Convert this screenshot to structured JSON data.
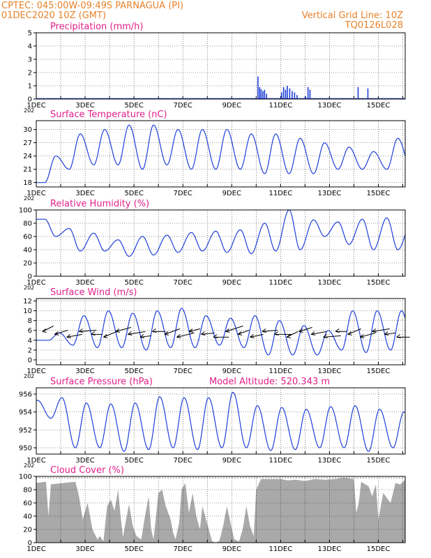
{
  "header": {
    "line1": "CPTEC:   045:00W-09:49S   PARNAGUA (PI)",
    "line2": "01DEC2020 10Z (GMT)",
    "right1": "Vertical Grid Line: 10Z",
    "right2": "TQ0126L028"
  },
  "colors": {
    "header": "#e8822a",
    "title": "#e0208a",
    "series": "#1f3fd8",
    "cloud": "#a9a9a9",
    "grid": "#000000"
  },
  "chart_data": [
    {
      "type": "bar",
      "title": "Precipitation (mm/h)",
      "x_ticks": [
        "1DEC",
        "3DEC",
        "5DEC",
        "7DEC",
        "9DEC",
        "11DEC",
        "13DEC",
        "15DEC"
      ],
      "under_label": "202",
      "xlim_days": [
        1,
        16.1
      ],
      "ylim": [
        0,
        5
      ],
      "y_ticks": [
        "0",
        "1",
        "2",
        "3",
        "4",
        "5"
      ],
      "values_day_mm": [
        [
          10.05,
          1.7
        ],
        [
          10.12,
          0.9
        ],
        [
          10.18,
          0.75
        ],
        [
          10.25,
          0.6
        ],
        [
          10.32,
          0.7
        ],
        [
          10.4,
          0.4
        ],
        [
          11.02,
          0.5
        ],
        [
          11.1,
          0.9
        ],
        [
          11.18,
          0.7
        ],
        [
          11.25,
          1.0
        ],
        [
          11.35,
          0.8
        ],
        [
          11.45,
          0.6
        ],
        [
          11.55,
          0.5
        ],
        [
          11.65,
          0.3
        ],
        [
          12.0,
          0.2
        ],
        [
          12.1,
          0.9
        ],
        [
          12.18,
          0.7
        ],
        [
          14.15,
          0.9
        ],
        [
          14.55,
          0.8
        ]
      ]
    },
    {
      "type": "line",
      "title": "Surface Temperature (nC)",
      "x_ticks": [
        "1DEC",
        "3DEC",
        "5DEC",
        "7DEC",
        "9DEC",
        "11DEC",
        "13DEC",
        "15DEC"
      ],
      "under_label": "202",
      "xlim_days": [
        1,
        16.1
      ],
      "ylim": [
        17,
        32
      ],
      "y_ticks": [
        "18",
        "21",
        "24",
        "27",
        "30"
      ],
      "daily_min": [
        18,
        21,
        22,
        22,
        21,
        22,
        21,
        21,
        21,
        20,
        20,
        20,
        21,
        21,
        21,
        21
      ],
      "daily_max": [
        24,
        29,
        30,
        31,
        31,
        30,
        30,
        30,
        29,
        29,
        28,
        27,
        26,
        25,
        28,
        29.5
      ]
    },
    {
      "type": "line",
      "title": "Relative Humidity (%)",
      "x_ticks": [
        "1DEC",
        "3DEC",
        "5DEC",
        "7DEC",
        "9DEC",
        "11DEC",
        "13DEC",
        "15DEC"
      ],
      "under_label": "202",
      "xlim_days": [
        1,
        16.1
      ],
      "ylim": [
        0,
        100
      ],
      "y_ticks": [
        "0",
        "20",
        "40",
        "60",
        "80",
        "100"
      ],
      "daily_min": [
        60,
        38,
        38,
        30,
        32,
        36,
        38,
        36,
        34,
        38,
        40,
        60,
        48,
        40,
        40,
        42
      ],
      "daily_max": [
        86,
        72,
        65,
        55,
        60,
        62,
        66,
        68,
        70,
        80,
        100,
        85,
        82,
        86,
        88,
        80
      ]
    },
    {
      "type": "line",
      "title": "Surface Wind (m/s)",
      "x_ticks": [
        "1DEC",
        "3DEC",
        "5DEC",
        "7DEC",
        "9DEC",
        "11DEC",
        "13DEC",
        "15DEC"
      ],
      "under_label": "202",
      "xlim_days": [
        1,
        16.1
      ],
      "ylim": [
        -1,
        12.5
      ],
      "y_ticks": [
        "0",
        "2",
        "4",
        "6",
        "8",
        "10",
        "12"
      ],
      "daily_min": [
        4,
        3,
        2.5,
        2.5,
        2,
        2.5,
        2.5,
        3,
        2.5,
        1,
        1,
        1,
        2,
        1.5,
        2,
        1
      ],
      "daily_max": [
        5.5,
        9,
        10,
        9.5,
        10,
        10.5,
        9,
        8.5,
        9,
        8,
        7,
        6,
        10,
        10,
        10,
        10.5
      ],
      "vectors": "wind arrows along the ~5 m/s level"
    },
    {
      "type": "line",
      "title": "Surface Pressure (hPa)",
      "annotation": "Model Altitude: 520.343 m",
      "x_ticks": [
        "1DEC",
        "3DEC",
        "5DEC",
        "7DEC",
        "9DEC",
        "11DEC",
        "13DEC",
        "15DEC"
      ],
      "under_label": "202",
      "xlim_days": [
        1,
        16.1
      ],
      "ylim": [
        949.3,
        956.7
      ],
      "y_ticks": [
        "950",
        "952",
        "954",
        "956"
      ],
      "daily_min": [
        953.3,
        950,
        950,
        949.6,
        949.8,
        950,
        949.8,
        950,
        950,
        949.7,
        949.8,
        950,
        950,
        949.6,
        950,
        949.5
      ],
      "daily_max": [
        955.3,
        955.6,
        955,
        954.9,
        955,
        955.7,
        955.6,
        955.6,
        956.2,
        954.7,
        954.5,
        954.3,
        954.6,
        954.7,
        954.3,
        954
      ]
    },
    {
      "type": "area",
      "title": "Cloud Cover (%)",
      "x_ticks": [
        "1DEC",
        "3DEC",
        "5DEC",
        "7DEC",
        "9DEC",
        "11DEC",
        "13DEC",
        "15DEC"
      ],
      "xlim_days": [
        1,
        16.1
      ],
      "ylim": [
        0,
        100
      ],
      "y_ticks": [
        "0",
        "20",
        "40",
        "60",
        "80",
        "100"
      ],
      "breakpoints_day_pct": [
        [
          1.0,
          90
        ],
        [
          1.4,
          92
        ],
        [
          1.5,
          40
        ],
        [
          1.6,
          88
        ],
        [
          2.6,
          92
        ],
        [
          2.75,
          70
        ],
        [
          2.9,
          35
        ],
        [
          3.1,
          60
        ],
        [
          3.3,
          20
        ],
        [
          3.5,
          5
        ],
        [
          3.6,
          10
        ],
        [
          3.75,
          2
        ],
        [
          3.9,
          55
        ],
        [
          4.05,
          65
        ],
        [
          4.2,
          48
        ],
        [
          4.35,
          80
        ],
        [
          4.45,
          40
        ],
        [
          4.55,
          8
        ],
        [
          4.65,
          30
        ],
        [
          4.8,
          58
        ],
        [
          4.95,
          25
        ],
        [
          5.1,
          10
        ],
        [
          5.3,
          5
        ],
        [
          5.45,
          40
        ],
        [
          5.6,
          70
        ],
        [
          5.7,
          20
        ],
        [
          5.8,
          5
        ],
        [
          6.0,
          75
        ],
        [
          6.15,
          80
        ],
        [
          6.3,
          55
        ],
        [
          6.5,
          35
        ],
        [
          6.6,
          15
        ],
        [
          6.7,
          5
        ],
        [
          6.85,
          30
        ],
        [
          6.95,
          80
        ],
        [
          7.1,
          90
        ],
        [
          7.25,
          45
        ],
        [
          7.4,
          75
        ],
        [
          7.55,
          40
        ],
        [
          7.7,
          20
        ],
        [
          7.8,
          55
        ],
        [
          7.95,
          35
        ],
        [
          8.1,
          15
        ],
        [
          8.2,
          2
        ],
        [
          8.35,
          0
        ],
        [
          8.5,
          3
        ],
        [
          8.65,
          25
        ],
        [
          8.8,
          55
        ],
        [
          8.95,
          30
        ],
        [
          9.1,
          5
        ],
        [
          9.3,
          2
        ],
        [
          9.45,
          20
        ],
        [
          9.6,
          55
        ],
        [
          9.75,
          25
        ],
        [
          9.9,
          10
        ],
        [
          10.0,
          80
        ],
        [
          10.2,
          96
        ],
        [
          11.0,
          96
        ],
        [
          11.3,
          94
        ],
        [
          11.6,
          95
        ],
        [
          12.0,
          93
        ],
        [
          12.4,
          96
        ],
        [
          12.8,
          95
        ],
        [
          13.2,
          96
        ],
        [
          13.6,
          98
        ],
        [
          14.0,
          96
        ],
        [
          14.1,
          45
        ],
        [
          14.2,
          60
        ],
        [
          14.3,
          92
        ],
        [
          14.6,
          85
        ],
        [
          14.75,
          70
        ],
        [
          14.9,
          88
        ],
        [
          15.0,
          35
        ],
        [
          15.2,
          75
        ],
        [
          15.5,
          60
        ],
        [
          15.7,
          90
        ],
        [
          15.9,
          88
        ],
        [
          16.1,
          95
        ]
      ]
    }
  ]
}
